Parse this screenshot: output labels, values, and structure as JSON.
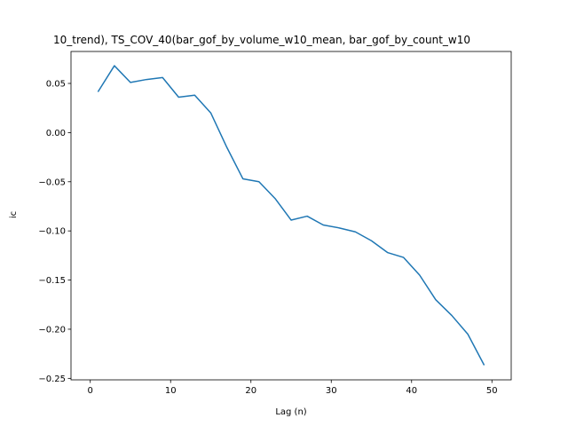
{
  "chart_data": {
    "type": "line",
    "title": "10_trend), TS_COV_40(bar_gof_by_volume_w10_mean, bar_gof_by_count_w10",
    "xlabel": "Lag (n)",
    "ylabel": "ic",
    "xlim": [
      -2.4,
      52.4
    ],
    "ylim": [
      -0.2515,
      0.0825
    ],
    "xticks": [
      0,
      10,
      20,
      30,
      40,
      50
    ],
    "yticks": [
      0.05,
      0.0,
      -0.05,
      -0.1,
      -0.15,
      -0.2,
      -0.25
    ],
    "ytick_labels": [
      "0.05",
      "0.00",
      "−0.05",
      "−0.10",
      "−0.15",
      "−0.20",
      "−0.25"
    ],
    "grid": false,
    "series": [
      {
        "color": "#1f77b4",
        "x": [
          1,
          3,
          5,
          7,
          9,
          11,
          13,
          15,
          17,
          19,
          21,
          23,
          25,
          27,
          29,
          31,
          33,
          35,
          37,
          39,
          41,
          43,
          45,
          47,
          49
        ],
        "y": [
          0.042,
          0.068,
          0.051,
          0.054,
          0.056,
          0.036,
          0.038,
          0.02,
          -0.015,
          -0.047,
          -0.05,
          -0.067,
          -0.089,
          -0.085,
          -0.094,
          -0.097,
          -0.101,
          -0.11,
          -0.122,
          -0.127,
          -0.145,
          -0.17,
          -0.186,
          -0.205,
          -0.236
        ]
      }
    ]
  }
}
